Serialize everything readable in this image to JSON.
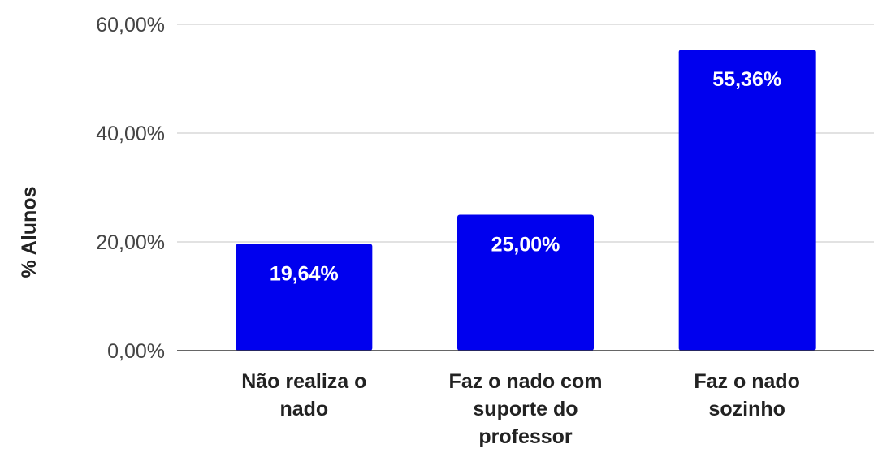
{
  "chart_data": {
    "type": "bar",
    "title": "",
    "xlabel": "",
    "ylabel": "% Alunos",
    "ylim": [
      0,
      60
    ],
    "yticks": [
      0,
      20,
      40,
      60
    ],
    "ytick_labels": [
      "0,00%",
      "20,00%",
      "40,00%",
      "60,00%"
    ],
    "grid": true,
    "legend": "none",
    "categories": [
      [
        "Não realiza o",
        "nado"
      ],
      [
        "Faz o nado com",
        "suporte do",
        "professor"
      ],
      [
        "Faz o nado",
        "sozinho"
      ]
    ],
    "values": [
      19.64,
      25.0,
      55.36
    ],
    "data_labels": [
      "19,64%",
      "25,00%",
      "55,36%"
    ],
    "bar_color": "#0000ee"
  }
}
